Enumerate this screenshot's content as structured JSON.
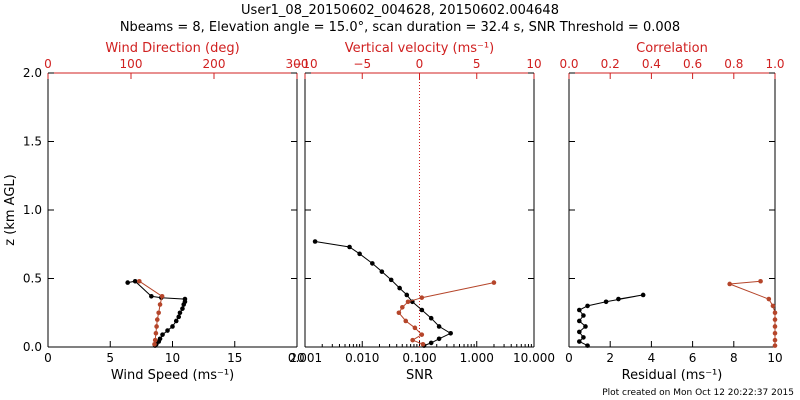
{
  "header": {
    "title_line1": "User1_08_20150602_004628, 20150602.004648",
    "title_line2": "Nbeams = 8, Elevation angle = 15.0°, scan duration = 32.4 s, SNR Threshold = 0.008"
  },
  "footer": {
    "created": "Plot created on Mon Oct 12 20:22:37 2015"
  },
  "colors": {
    "axis": "#000000",
    "secondary": "#d02020",
    "primary_series": "#000000",
    "secondary_series": "#b5452a"
  },
  "chart_data": [
    {
      "type": "scatter",
      "ylabel": "z (km AGL)",
      "ylim": [
        0,
        2.0
      ],
      "yticks": [
        "0.0",
        "0.5",
        "1.0",
        "1.5",
        "2.0"
      ],
      "xlabel": "Wind Speed (ms⁻¹)",
      "xlim": [
        0,
        20
      ],
      "xticks": [
        "0",
        "5",
        "10",
        "15",
        "20"
      ],
      "top_label": "Wind Direction (deg)",
      "top_xlim": [
        0,
        360
      ],
      "top_xticks": [
        "0",
        "100",
        "200",
        "300"
      ],
      "series": [
        {
          "values": [
            [
              6.4,
              0.47
            ],
            [
              7.0,
              0.48
            ],
            [
              8.3,
              0.37
            ],
            [
              9.1,
              0.36
            ],
            [
              11.0,
              0.35
            ],
            [
              11.0,
              0.33
            ],
            [
              10.9,
              0.31
            ],
            [
              10.8,
              0.28
            ],
            [
              10.6,
              0.25
            ],
            [
              10.5,
              0.22
            ],
            [
              10.3,
              0.19
            ],
            [
              10.0,
              0.15
            ],
            [
              9.6,
              0.12
            ],
            [
              9.2,
              0.09
            ],
            [
              9.0,
              0.06
            ],
            [
              8.9,
              0.04
            ],
            [
              8.7,
              0.02
            ],
            [
              8.6,
              0.01
            ]
          ]
        },
        {
          "values": [
            [
              132,
              0.48
            ],
            [
              165,
              0.37
            ],
            [
              162,
              0.31
            ],
            [
              160,
              0.25
            ],
            [
              158,
              0.2
            ],
            [
              157,
              0.15
            ],
            [
              156,
              0.1
            ],
            [
              155,
              0.05
            ],
            [
              154,
              0.02
            ]
          ]
        }
      ]
    },
    {
      "type": "line",
      "xlabel": "SNR",
      "xscale": "log",
      "xlim": [
        0.001,
        10
      ],
      "xticks": [
        "0.001",
        "0.010",
        "0.100",
        "1.000",
        "10.000"
      ],
      "top_label": "Vertical velocity (ms⁻¹)",
      "top_xlim": [
        -10,
        10
      ],
      "top_xticks": [
        "−10",
        "−5",
        "0",
        "5",
        "10"
      ],
      "series": [
        {
          "values": [
            [
              0.0015,
              0.77
            ],
            [
              0.006,
              0.73
            ],
            [
              0.009,
              0.68
            ],
            [
              0.015,
              0.61
            ],
            [
              0.022,
              0.55
            ],
            [
              0.032,
              0.49
            ],
            [
              0.045,
              0.43
            ],
            [
              0.06,
              0.38
            ],
            [
              0.075,
              0.33
            ],
            [
              0.11,
              0.27
            ],
            [
              0.16,
              0.21
            ],
            [
              0.22,
              0.15
            ],
            [
              0.35,
              0.1
            ],
            [
              0.22,
              0.06
            ],
            [
              0.16,
              0.03
            ],
            [
              0.12,
              0.01
            ]
          ]
        },
        {
          "values": [
            [
              6.5,
              0.47
            ],
            [
              0.2,
              0.36
            ],
            [
              -1.0,
              0.33
            ],
            [
              -1.5,
              0.29
            ],
            [
              -1.8,
              0.25
            ],
            [
              -1.2,
              0.19
            ],
            [
              -0.4,
              0.14
            ],
            [
              0.2,
              0.09
            ],
            [
              -0.6,
              0.05
            ],
            [
              0.3,
              0.02
            ]
          ]
        }
      ],
      "zero_line": 0
    },
    {
      "type": "scatter",
      "xlabel": "Residual (ms⁻¹)",
      "xlim": [
        0,
        10
      ],
      "xticks": [
        "0",
        "2",
        "4",
        "6",
        "8",
        "10"
      ],
      "top_label": "Correlation",
      "top_xlim": [
        0,
        1.0
      ],
      "top_xticks": [
        "0.0",
        "0.2",
        "0.4",
        "0.6",
        "0.8",
        "1.0"
      ],
      "series": [
        {
          "values": [
            [
              2.4,
              0.35
            ],
            [
              3.6,
              0.38
            ],
            [
              1.8,
              0.33
            ],
            [
              0.9,
              0.3
            ],
            [
              0.5,
              0.27
            ],
            [
              0.7,
              0.23
            ],
            [
              0.5,
              0.19
            ],
            [
              0.8,
              0.15
            ],
            [
              0.5,
              0.11
            ],
            [
              0.7,
              0.07
            ],
            [
              0.5,
              0.04
            ],
            [
              0.9,
              0.01
            ]
          ]
        },
        {
          "values": [
            [
              0.93,
              0.48
            ],
            [
              0.78,
              0.46
            ],
            [
              0.97,
              0.35
            ],
            [
              0.99,
              0.3
            ],
            [
              1.0,
              0.25
            ],
            [
              1.0,
              0.2
            ],
            [
              1.0,
              0.15
            ],
            [
              1.0,
              0.1
            ],
            [
              1.0,
              0.05
            ],
            [
              1.0,
              0.01
            ]
          ]
        }
      ]
    }
  ]
}
